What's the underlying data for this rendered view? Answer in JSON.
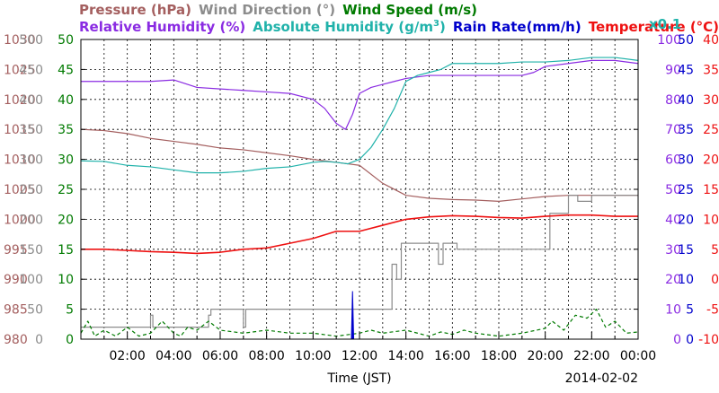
{
  "chart_data": {
    "type": "line",
    "legend": {
      "row1": [
        {
          "id": "pressure",
          "label": "Pressure (hPa)",
          "color": "#a45f5f"
        },
        {
          "id": "wind_dir",
          "label": "Wind Direction (°)",
          "color": "#8c8c8c"
        },
        {
          "id": "wind_speed",
          "label": "Wind Speed (m/s)",
          "color": "#007a00"
        }
      ],
      "row2": [
        {
          "id": "rh",
          "label": "Relative Humidity (%)",
          "color": "#8a2be2"
        },
        {
          "id": "ah",
          "label": "Absolute Humidity (g/m",
          "sup": "3",
          "tail": ")",
          "color": "#20b2aa"
        },
        {
          "id": "rain",
          "label": "Rain Rate(mm/h)",
          "color": "#0000cc"
        },
        {
          "id": "temp",
          "label": "Temperature (°C)",
          "color": "#ee1111"
        }
      ],
      "ah_scale_note": "x0.1"
    },
    "xlabel": "Time (JST)",
    "date_label": "2014-02-02",
    "x_ticks": [
      "02:00",
      "04:00",
      "06:00",
      "08:00",
      "10:00",
      "12:00",
      "14:00",
      "16:00",
      "18:00",
      "20:00",
      "22:00",
      "00:00"
    ],
    "xlim": [
      0,
      24
    ],
    "grid": true,
    "axes": {
      "pressure": {
        "side": "left",
        "color": "#a45f5f",
        "range": [
          980,
          1030
        ],
        "ticks": [
          1030,
          1025,
          1020,
          1015,
          1010,
          1005,
          1000,
          995,
          990,
          985,
          980
        ]
      },
      "wind_dir": {
        "side": "left",
        "color": "#8c8c8c",
        "range": [
          0,
          500
        ],
        "ticks": [
          500,
          450,
          400,
          350,
          300,
          250,
          200,
          150,
          100,
          50,
          0
        ]
      },
      "wind_speed": {
        "side": "left",
        "color": "#007a00",
        "range": [
          0,
          50
        ],
        "ticks": [
          50,
          45,
          40,
          35,
          30,
          25,
          20,
          15,
          10,
          5,
          0
        ]
      },
      "rh": {
        "side": "right",
        "color": "#8a2be2",
        "range": [
          0,
          100
        ],
        "ticks": [
          100,
          90,
          80,
          70,
          60,
          50,
          40,
          30,
          20,
          10,
          0
        ]
      },
      "rain": {
        "side": "right",
        "color": "#0000cc",
        "range": [
          0,
          50
        ],
        "ticks": [
          50,
          45,
          40,
          35,
          30,
          25,
          20,
          15,
          10,
          5,
          0
        ]
      },
      "temp": {
        "side": "right",
        "color": "#ee1111",
        "range": [
          -10,
          40
        ],
        "ticks": [
          40,
          35,
          30,
          25,
          20,
          15,
          10,
          5,
          0,
          -5,
          -10
        ]
      }
    },
    "series": [
      {
        "id": "pressure",
        "name": "Pressure (hPa)",
        "axis": "pressure",
        "color": "#a45f5f",
        "x": [
          0,
          1,
          2,
          3,
          4,
          5,
          6,
          7,
          8,
          9,
          10,
          11,
          12,
          13,
          14,
          15,
          16,
          17,
          18,
          19,
          20,
          21,
          22,
          23,
          24
        ],
        "y": [
          1015,
          1014.8,
          1014.3,
          1013.5,
          1013,
          1012.5,
          1011.9,
          1011.6,
          1011.1,
          1010.6,
          1010.0,
          1009.5,
          1009.0,
          1006.0,
          1004.0,
          1003.5,
          1003.3,
          1003.2,
          1003.0,
          1003.4,
          1003.8,
          1004.0,
          1004.0,
          1004.0,
          1004.0
        ]
      },
      {
        "id": "wind_dir",
        "name": "Wind Direction (°)",
        "axis": "wind_dir",
        "color": "#8c8c8c",
        "step": true,
        "x": [
          0,
          2.9,
          3.0,
          3.1,
          5.4,
          5.5,
          5.6,
          6.9,
          7.0,
          7.1,
          8.0,
          12.0,
          13.3,
          13.4,
          13.6,
          13.8,
          14.2,
          15.4,
          15.6,
          16.0,
          16.2,
          19.0,
          19.7,
          20.2,
          21.0,
          21.4,
          22.0,
          24.0
        ],
        "y": [
          20,
          20,
          40,
          20,
          20,
          40,
          50,
          50,
          20,
          50,
          50,
          50,
          50,
          125,
          100,
          160,
          160,
          125,
          160,
          160,
          150,
          150,
          150,
          210,
          240,
          230,
          240,
          240
        ]
      },
      {
        "id": "wind_speed",
        "name": "Wind Speed (m/s)",
        "axis": "wind_speed",
        "color": "#007a00",
        "dashed": true,
        "x": [
          0,
          0.3,
          0.6,
          1.0,
          1.5,
          2.0,
          2.5,
          3.0,
          3.5,
          4.0,
          4.3,
          4.6,
          5.0,
          5.5,
          6.0,
          7.0,
          8.0,
          9.0,
          10.0,
          11.0,
          12.0,
          12.5,
          13.0,
          14.0,
          15.0,
          15.5,
          16.0,
          16.5,
          17.0,
          18.0,
          19.0,
          20.0,
          20.3,
          20.8,
          21.3,
          21.8,
          22.2,
          22.6,
          23.0,
          23.5,
          24.0
        ],
        "y": [
          1,
          3,
          0.5,
          1.5,
          0.5,
          2,
          0.5,
          1,
          3,
          1,
          0.5,
          2,
          1.5,
          3,
          1.5,
          1,
          1.5,
          1,
          1,
          0.5,
          1,
          1.5,
          1,
          1.5,
          0.5,
          1.2,
          0.8,
          1.5,
          1,
          0.5,
          1,
          1.8,
          3,
          1.5,
          4,
          3.5,
          5,
          2,
          3,
          1,
          1.2
        ]
      },
      {
        "id": "rh",
        "name": "Relative Humidity (%)",
        "axis": "rh",
        "color": "#8a2be2",
        "x": [
          0,
          1,
          2,
          3,
          4,
          5,
          6,
          7,
          8,
          9,
          10,
          10.5,
          11,
          11.4,
          11.7,
          12,
          12.5,
          13,
          13.5,
          14,
          15,
          16,
          17,
          18,
          19,
          19.5,
          20,
          21,
          22,
          23,
          24
        ],
        "y": [
          86,
          86,
          86,
          86,
          86.5,
          84,
          83.5,
          83,
          82.5,
          82,
          80,
          77,
          72,
          70,
          75,
          82,
          84,
          85,
          86,
          87,
          88,
          88,
          88,
          88,
          88,
          89,
          91,
          92,
          93,
          93,
          92
        ]
      },
      {
        "id": "ah",
        "name": "Absolute Humidity (g/m3)",
        "axis": "rh",
        "color": "#20b2aa",
        "x": [
          0,
          1,
          2,
          3,
          4,
          5,
          6,
          7,
          8,
          9,
          10,
          10.5,
          11,
          11.5,
          12,
          12.5,
          13,
          13.5,
          14,
          14.5,
          15,
          15.5,
          16,
          17,
          18,
          19,
          20,
          21,
          22,
          23,
          24
        ],
        "y": [
          59.5,
          59.3,
          58,
          57.5,
          56.5,
          55.5,
          55.5,
          56,
          57,
          57.5,
          59,
          59.3,
          59,
          58.5,
          60,
          64,
          70,
          77,
          86,
          88,
          89,
          90,
          92,
          92,
          92,
          92.5,
          92.5,
          93,
          94,
          94,
          93
        ]
      },
      {
        "id": "rain",
        "name": "Rain Rate(mm/h)",
        "axis": "rain",
        "color": "#0000cc",
        "spikes": true,
        "x": [
          11.65,
          11.7,
          11.75
        ],
        "y": [
          0,
          8,
          0
        ]
      },
      {
        "id": "temp",
        "name": "Temperature (°C)",
        "axis": "temp",
        "color": "#ee1111",
        "x": [
          0,
          1,
          2,
          3,
          4,
          5,
          6,
          7,
          8,
          9,
          10,
          11,
          12,
          13,
          14,
          15,
          16,
          17,
          18,
          19,
          20,
          21,
          22,
          23,
          24
        ],
        "y": [
          5,
          5,
          4.8,
          4.6,
          4.5,
          4.3,
          4.5,
          5,
          5.2,
          6,
          6.8,
          8,
          8,
          9,
          10,
          10.4,
          10.6,
          10.5,
          10.3,
          10.2,
          10.5,
          10.7,
          10.7,
          10.5,
          10.5
        ]
      }
    ]
  }
}
